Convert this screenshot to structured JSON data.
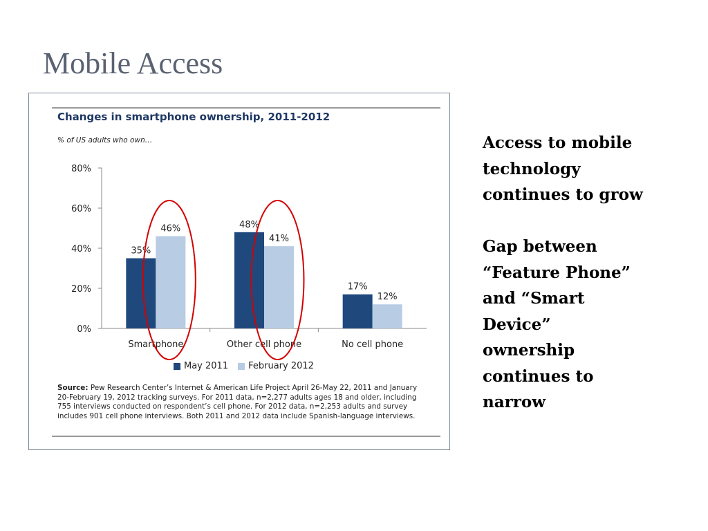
{
  "slide": {
    "title": "Mobile Access",
    "notes": [
      [
        "Access to mobile",
        "technology",
        "continues to grow"
      ],
      [
        "Gap between",
        "“Feature Phone”",
        "and “Smart",
        "Device”",
        "ownership",
        "continues to",
        "narrow"
      ]
    ]
  },
  "colors": {
    "may_2011": "#1f497d",
    "feb_2012": "#b8cce4",
    "highlight_ellipse": "#d40000"
  },
  "chart_data": {
    "type": "bar",
    "title": "Changes in smartphone ownership, 2011-2012",
    "subtitle": "% of US adults who own…",
    "categories": [
      "Smartphone",
      "Other cell phone",
      "No cell phone"
    ],
    "series": [
      {
        "name": "May 2011",
        "values": [
          35,
          48,
          17
        ],
        "labels": [
          "35%",
          "48%",
          "17%"
        ]
      },
      {
        "name": "February 2012",
        "values": [
          46,
          41,
          12
        ],
        "labels": [
          "46%",
          "41%",
          "12%"
        ]
      }
    ],
    "yticks": [
      "0%",
      "20%",
      "40%",
      "60%",
      "80%"
    ],
    "ylim": [
      0,
      80
    ],
    "xlabel": "",
    "ylabel": "",
    "grid": false,
    "legend": "bottom",
    "annotations": [
      "red ellipse around Feb 2012 Smartphone bar",
      "red ellipse around Feb 2012 Other cell phone bar"
    ]
  },
  "source": {
    "label": "Source:",
    "text": "Pew Research Center’s Internet & American Life Project April 26-May 22, 2011 and January 20-February 19, 2012 tracking surveys. For 2011 data, n=2,277 adults ages 18 and older, including 755 interviews conducted on respondent’s cell phone. For 2012 data, n=2,253 adults and survey includes 901 cell phone interviews. Both 2011 and 2012 data include Spanish-language interviews."
  }
}
